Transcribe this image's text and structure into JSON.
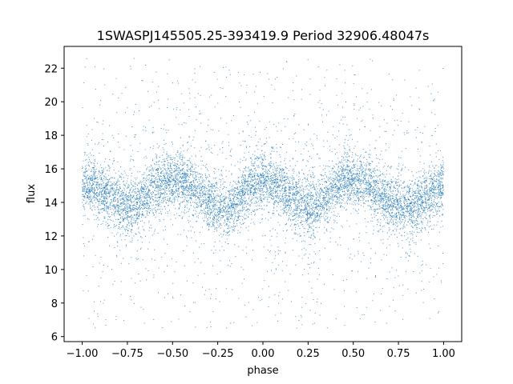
{
  "chart_data": {
    "type": "scatter",
    "title": "1SWASPJ145505.25-393419.9 Period 32906.48047s",
    "xlabel": "phase",
    "ylabel": "flux",
    "xlim": [
      -1.1,
      1.1
    ],
    "ylim": [
      5.7,
      23.3
    ],
    "xticks": [
      -1.0,
      -0.75,
      -0.5,
      -0.25,
      0.0,
      0.25,
      0.5,
      0.75,
      1.0
    ],
    "xtick_labels": [
      "−1.00",
      "−0.75",
      "−0.50",
      "−0.25",
      "0.00",
      "0.25",
      "0.50",
      "0.75",
      "1.00"
    ],
    "yticks": [
      6,
      8,
      10,
      12,
      14,
      16,
      18,
      20,
      22
    ],
    "ytick_labels": [
      "6",
      "8",
      "10",
      "12",
      "14",
      "16",
      "18",
      "20",
      "22"
    ],
    "grid": false,
    "legend": false,
    "series": [
      {
        "color": "#1f77b4",
        "marker_size": 0.5,
        "x_range": [
          -1.0,
          1.0
        ],
        "y_clip": [
          6.5,
          22.6
        ],
        "mean_curve": {
          "x": [
            -1.0,
            -0.95,
            -0.9,
            -0.85,
            -0.8,
            -0.75,
            -0.7,
            -0.65,
            -0.6,
            -0.55,
            -0.5,
            -0.45,
            -0.4,
            -0.35,
            -0.3,
            -0.25,
            -0.2,
            -0.15,
            -0.1,
            -0.05,
            0.0,
            0.05,
            0.1,
            0.15,
            0.2,
            0.25,
            0.3,
            0.35,
            0.4,
            0.45,
            0.5,
            0.55,
            0.6,
            0.65,
            0.7,
            0.75,
            0.8,
            0.85,
            0.9,
            0.95,
            1.0
          ],
          "y": [
            14.9,
            15.0,
            14.8,
            14.5,
            14.0,
            13.7,
            13.8,
            14.3,
            14.9,
            15.3,
            15.4,
            15.3,
            15.0,
            14.5,
            14.0,
            13.6,
            13.6,
            14.0,
            14.6,
            15.1,
            15.3,
            15.2,
            14.8,
            14.3,
            13.9,
            13.7,
            13.8,
            14.3,
            14.9,
            15.3,
            15.4,
            15.2,
            14.9,
            14.5,
            14.1,
            13.8,
            13.7,
            13.9,
            14.3,
            14.7,
            14.9
          ]
        },
        "core_spread_sd": 0.8,
        "outlier_fraction": 0.08
      }
    ]
  }
}
